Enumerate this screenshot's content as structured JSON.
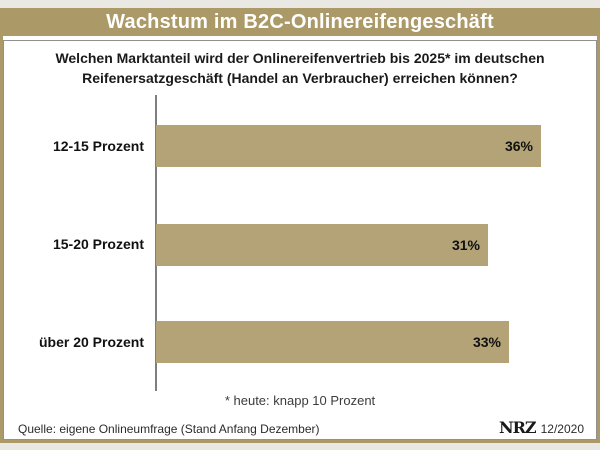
{
  "header": {
    "title": "Wachstum im B2C-Onlinereifengeschäft"
  },
  "question": {
    "line1": "Welchen Marktanteil wird der Onlinereifenvertrieb bis 2025* im deutschen",
    "line2": "Reifenersatzgeschäft (Handel an Verbraucher) erreichen können?"
  },
  "chart_data": {
    "type": "bar",
    "orientation": "horizontal",
    "title": "Wachstum im B2C-Onlinereifengeschäft",
    "subtitle": "Welchen Marktanteil wird der Onlinereifenvertrieb bis 2025* im deutschen Reifenersatzgeschäft (Handel an Verbraucher) erreichen können?",
    "categories": [
      "12-15 Prozent",
      "15-20 Prozent",
      "über 20 Prozent"
    ],
    "values": [
      36,
      31,
      33
    ],
    "value_labels": [
      "36%",
      "31%",
      "33%"
    ],
    "unit": "%",
    "xlim": [
      0,
      40
    ],
    "grid": false,
    "legend": false,
    "bar_color": "#b3a376",
    "accent_color": "#ab9a67"
  },
  "footnote": "* heute: knapp 10 Prozent",
  "footer": {
    "source": "Quelle: eigene Onlineumfrage (Stand Anfang Dezember)",
    "logo": "NRZ",
    "issue": "12/2020"
  }
}
